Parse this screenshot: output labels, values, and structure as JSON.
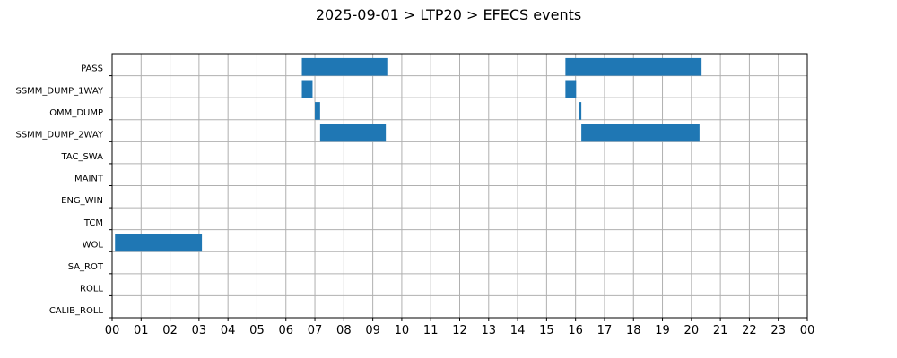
{
  "chart_data": {
    "type": "bar",
    "orientation": "horizontal-timeline",
    "title": "2025-09-01 > LTP20 > EFECS events",
    "xlabel": "",
    "ylabel": "",
    "xlim": [
      0,
      24
    ],
    "x_tick_labels": [
      "00",
      "01",
      "02",
      "03",
      "04",
      "05",
      "06",
      "07",
      "08",
      "09",
      "10",
      "11",
      "12",
      "13",
      "14",
      "15",
      "16",
      "17",
      "18",
      "19",
      "20",
      "21",
      "22",
      "23",
      "00"
    ],
    "categories": [
      "PASS",
      "SSMM_DUMP_1WAY",
      "OMM_DUMP",
      "SSMM_DUMP_2WAY",
      "TAC_SWA",
      "MAINT",
      "ENG_WIN",
      "TCM",
      "WOL",
      "SA_ROT",
      "ROLL",
      "CALIB_ROLL"
    ],
    "grid": true,
    "bar_color": "#1f77b4",
    "events": [
      {
        "category": "PASS",
        "start": 6.55,
        "end": 9.5
      },
      {
        "category": "PASS",
        "start": 15.65,
        "end": 20.35
      },
      {
        "category": "SSMM_DUMP_1WAY",
        "start": 6.55,
        "end": 6.92
      },
      {
        "category": "SSMM_DUMP_1WAY",
        "start": 15.65,
        "end": 16.02
      },
      {
        "category": "OMM_DUMP",
        "start": 7.0,
        "end": 7.18
      },
      {
        "category": "OMM_DUMP",
        "start": 16.12,
        "end": 16.2
      },
      {
        "category": "SSMM_DUMP_2WAY",
        "start": 7.18,
        "end": 9.45
      },
      {
        "category": "SSMM_DUMP_2WAY",
        "start": 16.2,
        "end": 20.28
      },
      {
        "category": "WOL",
        "start": 0.1,
        "end": 3.1
      }
    ]
  }
}
